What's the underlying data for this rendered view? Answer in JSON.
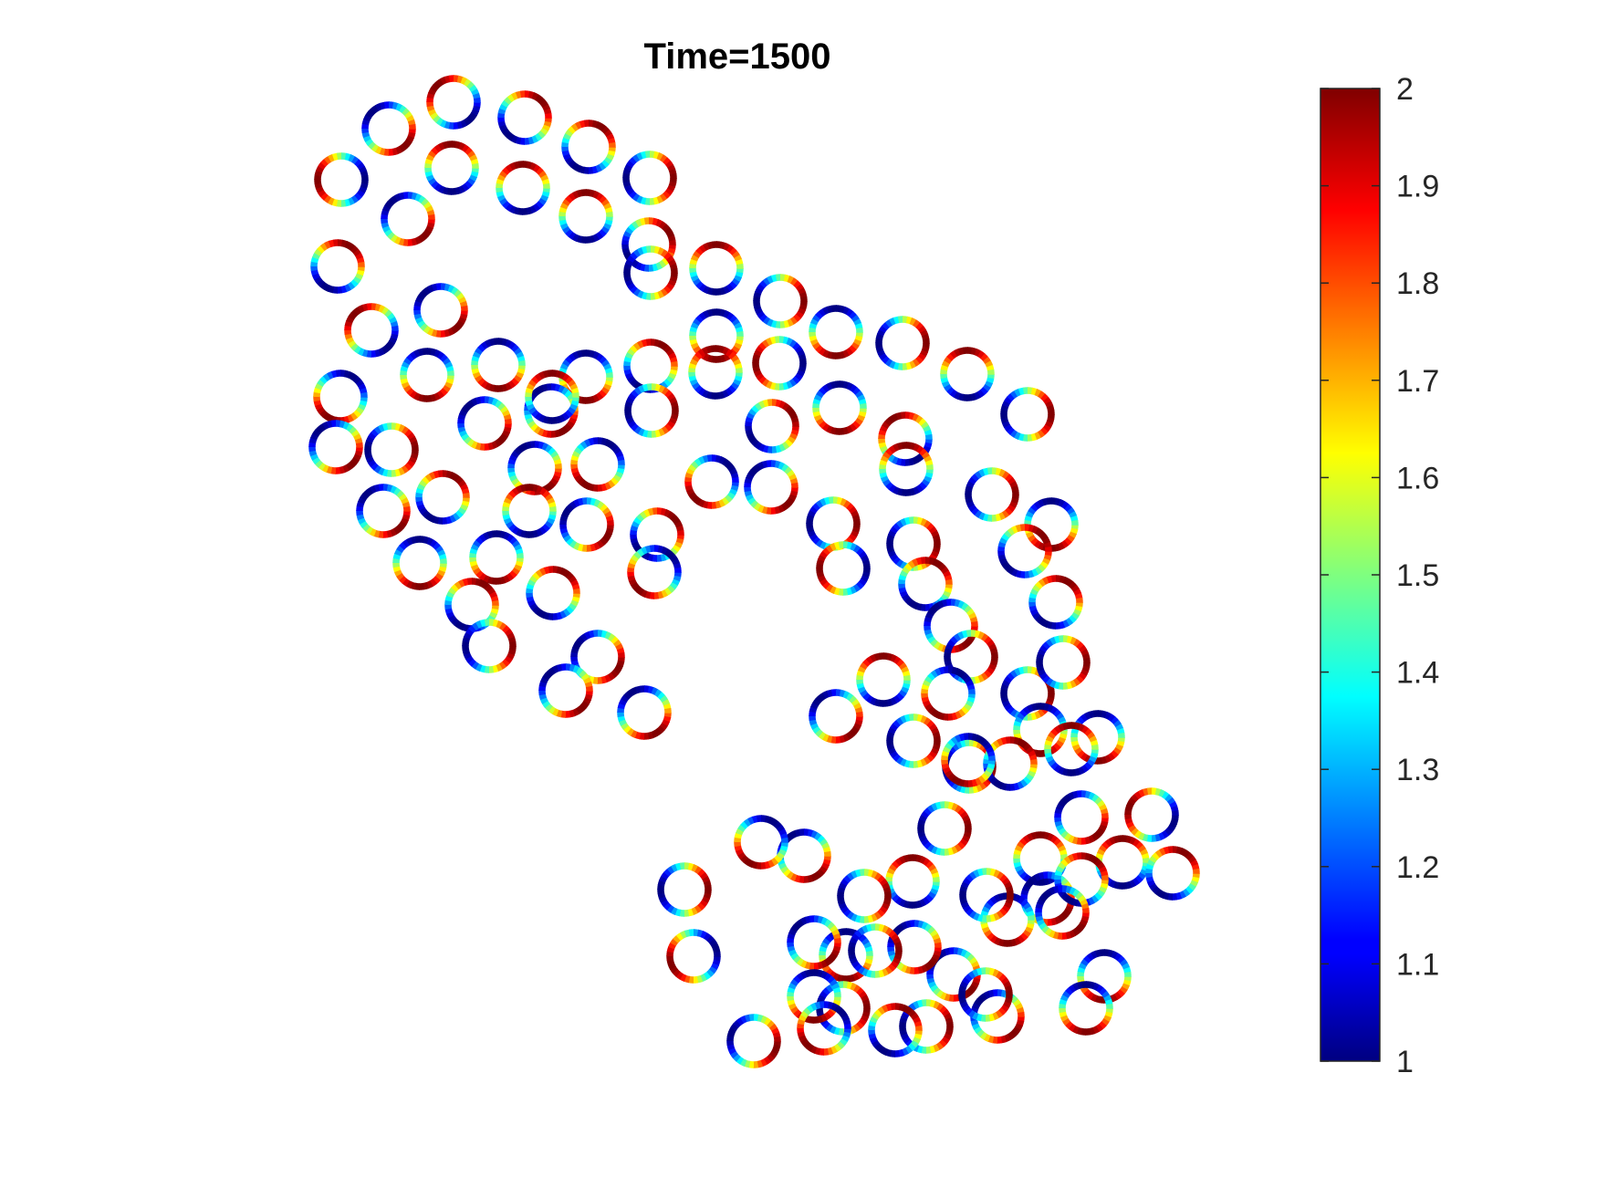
{
  "chart_data": {
    "type": "scatter",
    "title": "Time=1500",
    "marker": "ring",
    "colormap": "jet",
    "colorbar": {
      "min": 1,
      "max": 2,
      "ticks": [
        "1",
        "1.1",
        "1.2",
        "1.3",
        "1.4",
        "1.5",
        "1.6",
        "1.7",
        "1.8",
        "1.9",
        "2"
      ],
      "placement": "right"
    },
    "axes_visible": false,
    "xlim": [
      0,
      1750
    ],
    "ylim": [
      0,
      1313
    ],
    "rings": [
      [
        497,
        112,
        225
      ],
      [
        426,
        141,
        45
      ],
      [
        575,
        129,
        315
      ],
      [
        374,
        197,
        180
      ],
      [
        495,
        184,
        270
      ],
      [
        645,
        161,
        300
      ],
      [
        712,
        195,
        0
      ],
      [
        573,
        206,
        270
      ],
      [
        447,
        240,
        45
      ],
      [
        642,
        237,
        270
      ],
      [
        711,
        268,
        330
      ],
      [
        370,
        292,
        300
      ],
      [
        785,
        294,
        270
      ],
      [
        713,
        299,
        0
      ],
      [
        855,
        330,
        0
      ],
      [
        407,
        362,
        225
      ],
      [
        483,
        340,
        45
      ],
      [
        546,
        400,
        90
      ],
      [
        713,
        401,
        300
      ],
      [
        785,
        368,
        90
      ],
      [
        642,
        413,
        90
      ],
      [
        373,
        435,
        120
      ],
      [
        916,
        364,
        90
      ],
      [
        468,
        411,
        90
      ],
      [
        604,
        450,
        60
      ],
      [
        784,
        408,
        270
      ],
      [
        989,
        376,
        0
      ],
      [
        854,
        398,
        180
      ],
      [
        714,
        450,
        0
      ],
      [
        368,
        490,
        45
      ],
      [
        429,
        493,
        0
      ],
      [
        531,
        464,
        45
      ],
      [
        605,
        435,
        270
      ],
      [
        586,
        513,
        60
      ],
      [
        920,
        447,
        90
      ],
      [
        1060,
        410,
        270
      ],
      [
        846,
        467,
        330
      ],
      [
        992,
        481,
        240
      ],
      [
        1126,
        454,
        0
      ],
      [
        780,
        528,
        135
      ],
      [
        655,
        509,
        120
      ],
      [
        485,
        545,
        300
      ],
      [
        420,
        560,
        45
      ],
      [
        993,
        514,
        270
      ],
      [
        1087,
        542,
        0
      ],
      [
        544,
        611,
        90
      ],
      [
        845,
        534,
        45
      ],
      [
        913,
        574,
        0
      ],
      [
        720,
        586,
        320
      ],
      [
        580,
        560,
        270
      ],
      [
        1001,
        596,
        0
      ],
      [
        1152,
        575,
        90
      ],
      [
        924,
        623,
        180
      ],
      [
        643,
        575,
        30
      ],
      [
        460,
        617,
        90
      ],
      [
        517,
        663,
        300
      ],
      [
        717,
        627,
        135
      ],
      [
        1014,
        640,
        300
      ],
      [
        1123,
        604,
        320
      ],
      [
        1157,
        660,
        300
      ],
      [
        606,
        650,
        300
      ],
      [
        1042,
        686,
        45
      ],
      [
        655,
        720,
        30
      ],
      [
        1064,
        720,
        0
      ],
      [
        536,
        708,
        0
      ],
      [
        968,
        745,
        270
      ],
      [
        1126,
        760,
        0
      ],
      [
        1165,
        726,
        0
      ],
      [
        620,
        757,
        45
      ],
      [
        1039,
        760,
        120
      ],
      [
        1140,
        800,
        90
      ],
      [
        1062,
        840,
        0
      ],
      [
        1107,
        837,
        300
      ],
      [
        1203,
        808,
        90
      ],
      [
        1001,
        812,
        0
      ],
      [
        1061,
        833,
        120
      ],
      [
        706,
        781,
        60
      ],
      [
        916,
        785,
        45
      ],
      [
        1174,
        821,
        270
      ],
      [
        1140,
        941,
        270
      ],
      [
        1185,
        896,
        45
      ],
      [
        1035,
        908,
        0
      ],
      [
        1230,
        945,
        270
      ],
      [
        1000,
        966,
        270
      ],
      [
        881,
        938,
        60
      ],
      [
        1262,
        893,
        200
      ],
      [
        947,
        982,
        0
      ],
      [
        834,
        923,
        120
      ],
      [
        927,
        1047,
        90
      ],
      [
        750,
        975,
        0
      ],
      [
        1148,
        985,
        45
      ],
      [
        760,
        1048,
        160
      ],
      [
        1045,
        1068,
        45
      ],
      [
        1104,
        1008,
        90
      ],
      [
        1185,
        964,
        300
      ],
      [
        1164,
        1000,
        45
      ],
      [
        924,
        1105,
        0
      ],
      [
        1015,
        1125,
        0
      ],
      [
        1093,
        1114,
        45
      ],
      [
        1081,
        981,
        0
      ],
      [
        1002,
        1038,
        45
      ],
      [
        892,
        1033,
        45
      ],
      [
        1210,
        1070,
        90
      ],
      [
        1190,
        1105,
        90
      ],
      [
        1285,
        957,
        300
      ],
      [
        959,
        1042,
        0
      ],
      [
        892,
        1092,
        90
      ],
      [
        1080,
        1090,
        0
      ],
      [
        826,
        1141,
        20
      ],
      [
        903,
        1127,
        135
      ],
      [
        981,
        1129,
        300
      ]
    ]
  }
}
